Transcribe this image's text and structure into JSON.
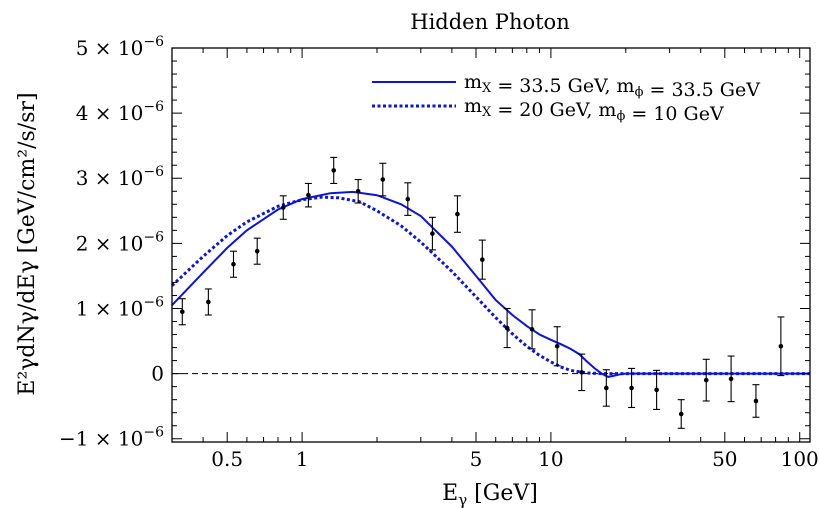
{
  "chart_data": {
    "type": "line",
    "title": "Hidden Photon",
    "xlabel": "E",
    "xlabel_sub": "γ",
    "xlabel_unit": "[GeV]",
    "ylabel": "E²γdNγ/dEγ [GeV/cm²/s/sr]",
    "x_scale": "log",
    "xlim": [
      0.3,
      110
    ],
    "ylim": [
      -1.05e-06,
      5e-06
    ],
    "x_ticks": [
      {
        "value": 0.5,
        "label": "0.5"
      },
      {
        "value": 1,
        "label": "1"
      },
      {
        "value": 5,
        "label": "5"
      },
      {
        "value": 10,
        "label": "10"
      },
      {
        "value": 50,
        "label": "50"
      },
      {
        "value": 100,
        "label": "100"
      }
    ],
    "y_ticks": [
      {
        "value": -1e-06,
        "mant": "−1",
        "exp": "−6"
      },
      {
        "value": 0,
        "mant": "0",
        "exp": ""
      },
      {
        "value": 1e-06,
        "mant": "1",
        "exp": "−6"
      },
      {
        "value": 2e-06,
        "mant": "2",
        "exp": "−6"
      },
      {
        "value": 3e-06,
        "mant": "3",
        "exp": "−6"
      },
      {
        "value": 4e-06,
        "mant": "4",
        "exp": "−6"
      },
      {
        "value": 5e-06,
        "mant": "5",
        "exp": "−6"
      }
    ],
    "zero_line": true,
    "legend_position": "top-right",
    "series": [
      {
        "name": "mX = 33.5 GeV,  mϕ = 33.5 GeV",
        "label_parts": {
          "a": "m",
          "a_sub": "X",
          "a_val": " = 33.5 GeV,  ",
          "b": "m",
          "b_sub": "ϕ",
          "b_val": " = 33.5 GeV"
        },
        "style": "solid",
        "color": "#0a14e0",
        "x": [
          0.3,
          0.4,
          0.5,
          0.6,
          0.8,
          1.0,
          1.3,
          1.6,
          2.0,
          2.5,
          3.0,
          4.0,
          5.0,
          6.0,
          7.0,
          8.0,
          9.0,
          10.0,
          11.0,
          12.0,
          13.0,
          14.0,
          15.0,
          16.0,
          17.0,
          18.0,
          19.0,
          20.0,
          25.0,
          50.0,
          110.0
        ],
        "y": [
          1.05e-06,
          1.55e-06,
          1.93e-06,
          2.2e-06,
          2.52e-06,
          2.68e-06,
          2.77e-06,
          2.79e-06,
          2.74e-06,
          2.6e-06,
          2.42e-06,
          1.95e-06,
          1.5e-06,
          1.13e-06,
          9e-07,
          7.3e-07,
          6e-07,
          5.2e-07,
          4.5e-07,
          3.8e-07,
          3e-07,
          1.8e-07,
          8e-08,
          0.0,
          -5e-08,
          -3e-08,
          -1e-08,
          0.0,
          0.0,
          0.0,
          0.0
        ]
      },
      {
        "name": "mX = 20 GeV,  mϕ = 10 GeV",
        "label_parts": {
          "a": "m",
          "a_sub": "X",
          "a_val": " = 20 GeV,  ",
          "b": "m",
          "b_sub": "ϕ",
          "b_val": " = 10 GeV"
        },
        "style": "dotted",
        "color": "#0a14e0",
        "x": [
          0.3,
          0.4,
          0.5,
          0.6,
          0.8,
          1.0,
          1.2,
          1.4,
          1.7,
          2.0,
          2.5,
          3.0,
          4.0,
          5.0,
          6.0,
          7.0,
          8.0,
          9.0,
          10.0,
          11.0,
          12.0,
          14.0,
          16.0,
          18.0,
          20.0,
          30.0,
          110.0
        ],
        "y": [
          1.35e-06,
          1.8e-06,
          2.12e-06,
          2.33e-06,
          2.57e-06,
          2.67e-06,
          2.71e-06,
          2.7e-06,
          2.64e-06,
          2.5e-06,
          2.27e-06,
          2.02e-06,
          1.57e-06,
          1.18e-06,
          8.6e-07,
          6.1e-07,
          4.2e-07,
          2.8e-07,
          1.8e-07,
          1e-07,
          5e-08,
          1e-08,
          0.0,
          0.0,
          0.0,
          0.0,
          0.0
        ]
      }
    ],
    "data_points": {
      "x": [
        0.33,
        0.42,
        0.53,
        0.66,
        0.84,
        1.06,
        1.34,
        1.68,
        2.11,
        2.66,
        3.34,
        4.21,
        5.3,
        6.67,
        8.4,
        10.6,
        13.3,
        16.7,
        21.1,
        26.6,
        33.4,
        42.1,
        53.0,
        66.7,
        84.0
      ],
      "y": [
        9.5e-07,
        1.1e-06,
        1.68e-06,
        1.88e-06,
        2.55e-06,
        2.74e-06,
        3.12e-06,
        2.8e-06,
        2.98e-06,
        2.68e-06,
        2.15e-06,
        2.45e-06,
        1.75e-06,
        7e-07,
        6.8e-07,
        4.2e-07,
        2e-08,
        -2.2e-07,
        -2.2e-07,
        -2.5e-07,
        -6.2e-07,
        -1e-07,
        -8e-08,
        -4.2e-07,
        4.2e-07
      ],
      "err": [
        2e-07,
        2e-07,
        2e-07,
        2e-07,
        1.8e-07,
        1.8e-07,
        2e-07,
        1.8e-07,
        2.5e-07,
        2.5e-07,
        2.5e-07,
        2.8e-07,
        3e-07,
        3e-07,
        3e-07,
        3e-07,
        2.8e-07,
        2.8e-07,
        3e-07,
        3e-07,
        2.2e-07,
        3.2e-07,
        3.5e-07,
        2.5e-07,
        4.5e-07
      ],
      "color": "#000000"
    }
  }
}
